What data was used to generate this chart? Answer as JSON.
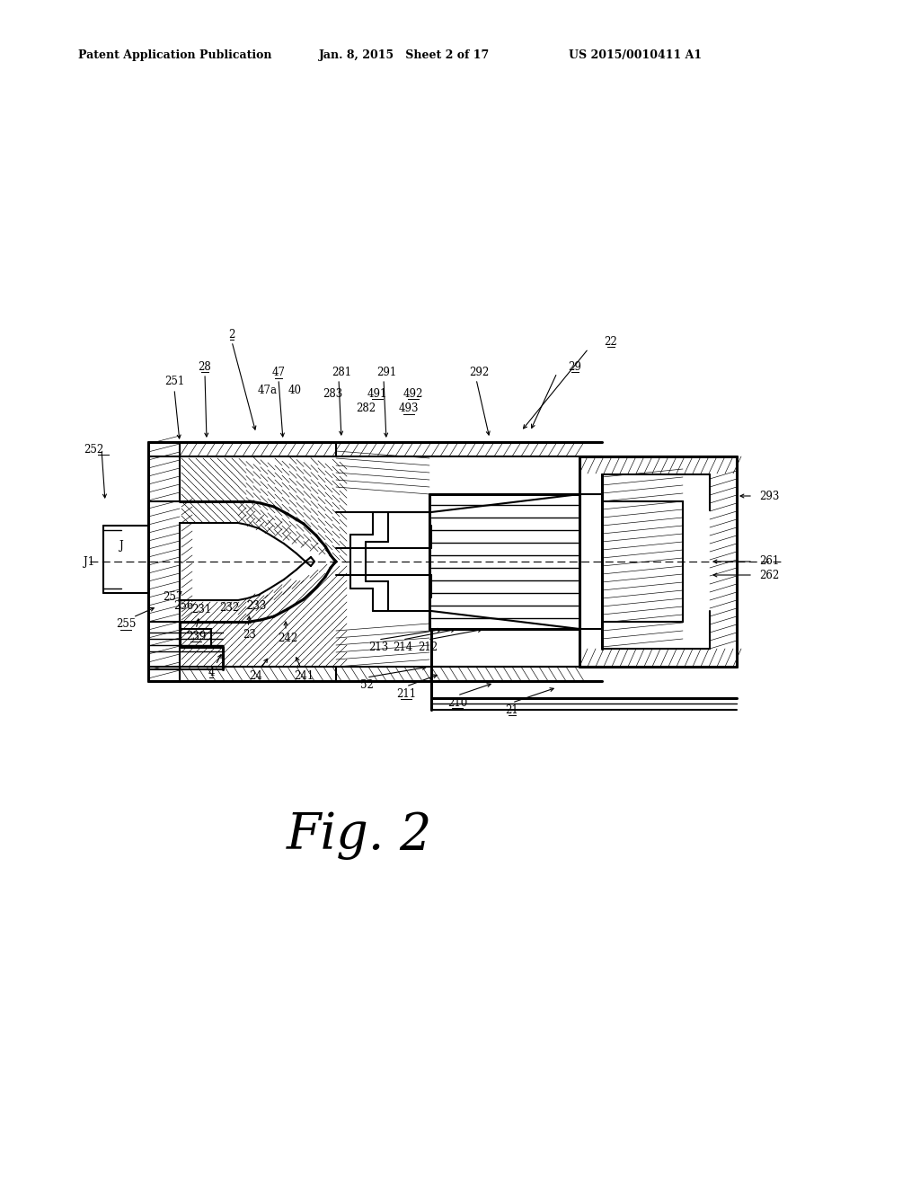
{
  "title": "Fig. 2",
  "header_left": "Patent Application Publication",
  "header_mid": "Jan. 8, 2015   Sheet 2 of 17",
  "header_right": "US 2015/0010411 A1",
  "bg_color": "#ffffff",
  "line_color": "#000000",
  "fig_width": 10.24,
  "fig_height": 13.2,
  "dpi": 100
}
